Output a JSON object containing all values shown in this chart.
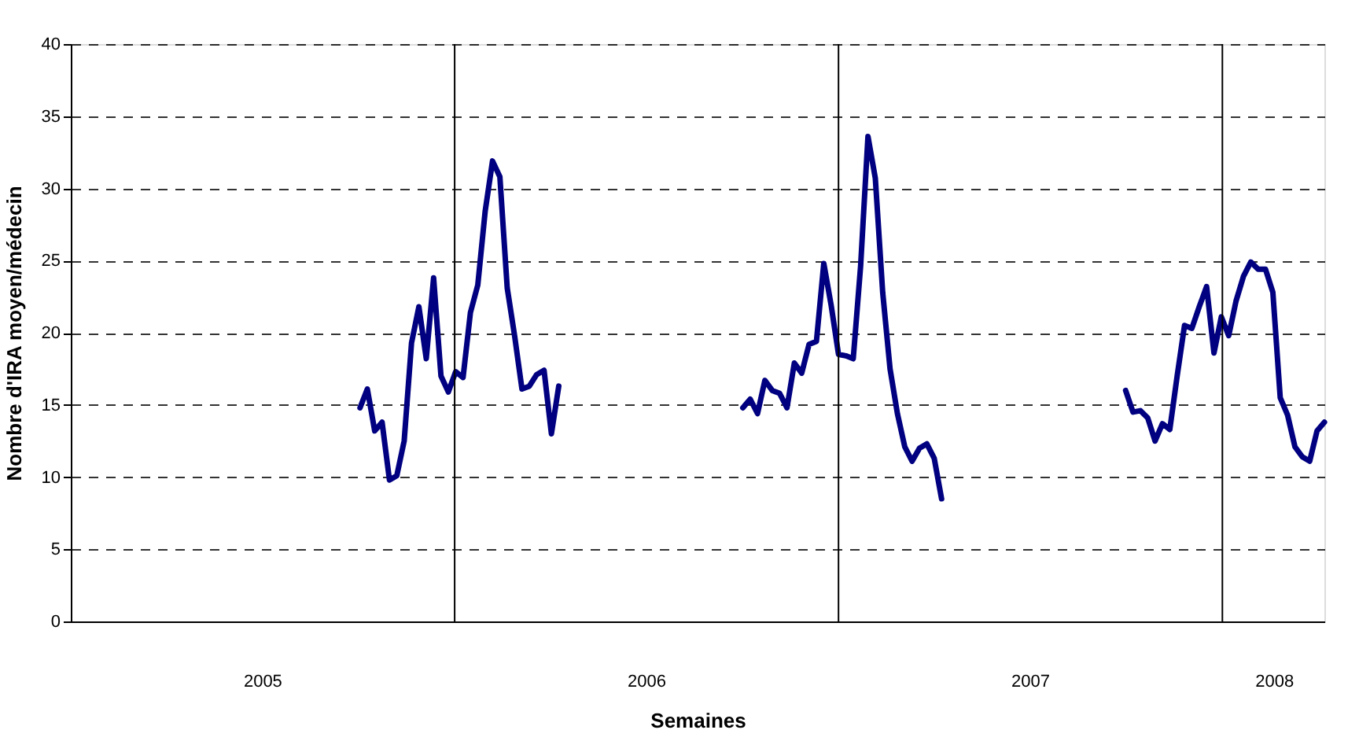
{
  "chart_data": {
    "type": "line",
    "xlabel": "Semaines",
    "ylabel": "Nombre d'IRA moyen/médecin",
    "series": [
      {
        "color": "#000080",
        "x": [
          "2005-10-03",
          "2005-10-10",
          "2005-10-17",
          "2005-10-24",
          "2005-10-31",
          "2005-11-07",
          "2005-11-14",
          "2005-11-21",
          "2005-11-28",
          "2005-12-05",
          "2005-12-12",
          "2005-12-19",
          "2005-12-26",
          "2006-01-02",
          "2006-01-09",
          "2006-01-16",
          "2006-01-23",
          "2006-01-30",
          "2006-02-06",
          "2006-02-13",
          "2006-02-20",
          "2006-02-27",
          "2006-03-06",
          "2006-03-13",
          "2006-03-20",
          "2006-03-27",
          "2006-04-03",
          "2006-04-10",
          "2006-04-17",
          "2006-10-02",
          "2006-10-09",
          "2006-10-16",
          "2006-10-23",
          "2006-10-30",
          "2006-11-06",
          "2006-11-13",
          "2006-11-20",
          "2006-11-27",
          "2006-12-04",
          "2006-12-11",
          "2006-12-18",
          "2006-12-25",
          "2007-01-01",
          "2007-01-08",
          "2007-01-15",
          "2007-01-22",
          "2007-01-29",
          "2007-02-05",
          "2007-02-12",
          "2007-02-19",
          "2007-02-26",
          "2007-03-05",
          "2007-03-12",
          "2007-03-19",
          "2007-03-26",
          "2007-04-02",
          "2007-04-09",
          "2007-04-16",
          "2007-10-01",
          "2007-10-08",
          "2007-10-15",
          "2007-10-22",
          "2007-10-29",
          "2007-11-05",
          "2007-11-12",
          "2007-11-19",
          "2007-11-26",
          "2007-12-03",
          "2007-12-10",
          "2007-12-17",
          "2007-12-24",
          "2007-12-31",
          "2008-01-07",
          "2008-01-14",
          "2008-01-21",
          "2008-01-28",
          "2008-02-04",
          "2008-02-11",
          "2008-02-18",
          "2008-02-25",
          "2008-03-03",
          "2008-03-10",
          "2008-03-17",
          "2008-03-24",
          "2008-03-31",
          "2008-04-07"
        ],
        "values": [
          14.8,
          16.1,
          13.2,
          13.8,
          9.8,
          10.1,
          12.5,
          19.3,
          21.8,
          18.2,
          23.8,
          17.0,
          15.9,
          17.3,
          16.9,
          21.4,
          23.3,
          28.4,
          31.9,
          30.8,
          23.1,
          19.8,
          16.1,
          16.3,
          17.1,
          17.4,
          13.0,
          16.3,
          null,
          14.8,
          15.4,
          14.4,
          16.7,
          16.0,
          15.8,
          14.8,
          17.9,
          17.2,
          19.2,
          19.4,
          24.8,
          21.9,
          18.5,
          18.4,
          18.2,
          24.6,
          33.6,
          30.7,
          22.8,
          17.5,
          14.4,
          12.1,
          11.1,
          12.0,
          12.3,
          11.3,
          8.5,
          null,
          16.0,
          14.5,
          14.6,
          14.1,
          12.5,
          13.7,
          13.3,
          17.0,
          20.5,
          20.3,
          21.8,
          23.2,
          18.6,
          21.1,
          19.8,
          22.2,
          23.9,
          24.9,
          24.4,
          24.4,
          22.8,
          15.5,
          14.3,
          12.1,
          11.4,
          11.1,
          13.2,
          13.8
        ]
      }
    ],
    "xlim": [
      "2005-01-01",
      "2008-04-07"
    ],
    "xticks": [
      {
        "value": "2005-07-02",
        "label": "2005"
      },
      {
        "value": "2006-07-02",
        "label": "2006"
      },
      {
        "value": "2007-07-02",
        "label": "2007"
      },
      {
        "value": "2008-02-19",
        "label": "2008"
      }
    ],
    "ylim": [
      0,
      40
    ],
    "yticks": [
      0,
      5,
      10,
      15,
      20,
      25,
      30,
      35,
      40
    ],
    "grid": "y",
    "line_style": "solid",
    "marker": "none",
    "ref_lines": [
      {
        "axis": "x",
        "value": "2006-01-01",
        "color": "#000000",
        "line_style": "solid"
      },
      {
        "axis": "x",
        "value": "2007-01-01",
        "color": "#000000",
        "line_style": "solid"
      },
      {
        "axis": "x",
        "value": "2008-01-01",
        "color": "#000000",
        "line_style": "solid"
      }
    ]
  }
}
